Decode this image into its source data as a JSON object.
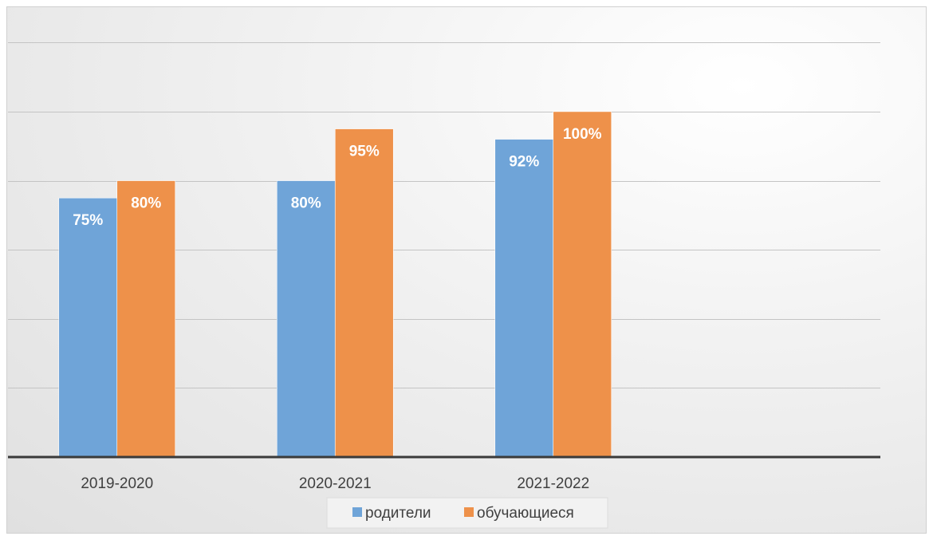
{
  "chart_data": {
    "type": "bar",
    "categories": [
      "2019-2020",
      "2020-2021",
      "2021-2022"
    ],
    "series": [
      {
        "name": "родители",
        "values": [
          75,
          80,
          92
        ],
        "labels": [
          "75%",
          "80%",
          "92%"
        ],
        "color": "#6fa4d8"
      },
      {
        "name": "обучающиеся",
        "values": [
          80,
          95,
          100
        ],
        "labels": [
          "80%",
          "95%",
          "100%"
        ],
        "color": "#ee914a"
      }
    ],
    "ylim": [
      0,
      130
    ],
    "grid_step": 20,
    "grid": true,
    "legend_position": "bottom",
    "title": "",
    "xlabel": "",
    "ylabel": ""
  }
}
